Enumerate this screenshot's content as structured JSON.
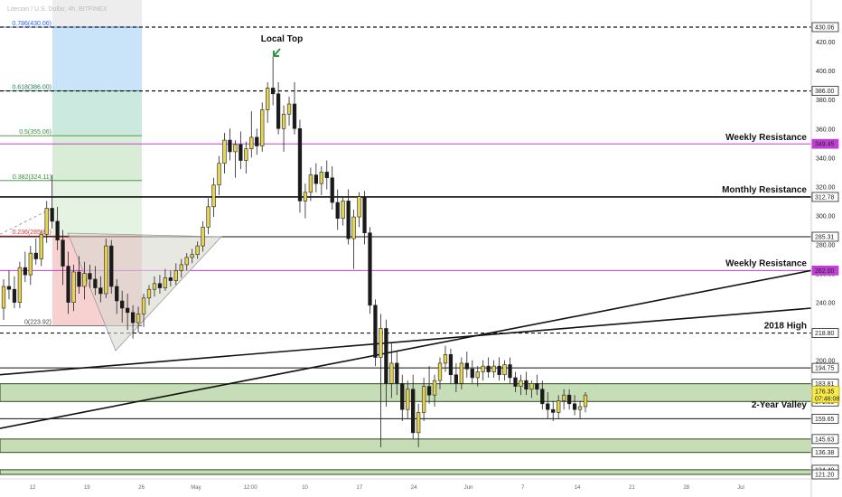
{
  "header": {
    "title": "Litecoin / U.S. Dollar, 4h, BITFINEX"
  },
  "colors": {
    "bull": "#e6d552",
    "bear": "#1a1a1a",
    "zone": "#8fbc6f",
    "resistance_purple": "#c23fd6",
    "fib_green": "#3c8c3c",
    "fib_red": "#d93636",
    "fib_blue": "#2962ff",
    "current_price": "#f7e94a"
  },
  "chart_data": {
    "type": "candlestick",
    "title": "",
    "xlabel": "",
    "ylabel": "",
    "ylim": [
      118,
      444
    ],
    "x_ticks": [
      "12",
      "19",
      "26",
      "May",
      "12:00",
      "10",
      "17",
      "24",
      "Jun",
      "7",
      "14",
      "21",
      "28",
      "Jul"
    ],
    "price_levels": [
      {
        "label": "430.06",
        "value": 430.06,
        "style": "dashed"
      },
      {
        "label": "386.00",
        "value": 386.0,
        "style": "dashed"
      },
      {
        "label": "349.45",
        "value": 349.45,
        "style": "purple"
      },
      {
        "label": "312.78",
        "value": 312.78,
        "style": "bold"
      },
      {
        "label": "285.31",
        "value": 285.31,
        "style": "solid"
      },
      {
        "label": "262.00",
        "value": 262.0,
        "style": "purple"
      },
      {
        "label": "218.80",
        "value": 218.8,
        "style": "dashed"
      },
      {
        "label": "194.75",
        "value": 194.75,
        "style": "solid"
      },
      {
        "label": "183.81",
        "value": 183.81,
        "style": "zone"
      },
      {
        "label": "171.55",
        "value": 171.55,
        "style": "zone"
      },
      {
        "label": "159.65",
        "value": 159.65,
        "style": "solid"
      },
      {
        "label": "145.63",
        "value": 145.63,
        "style": "zone"
      },
      {
        "label": "136.38",
        "value": 136.38,
        "style": "zone"
      },
      {
        "label": "124.40",
        "value": 124.4,
        "style": "zone"
      },
      {
        "label": "121.20",
        "value": 121.2,
        "style": "zone"
      }
    ],
    "axis_ticks": [
      420,
      400,
      380,
      360,
      340,
      320,
      300,
      280,
      260,
      240,
      220,
      200
    ],
    "current_price": {
      "price": "176.35",
      "countdown": "07:46:08",
      "value": 176.35
    },
    "annotations": [
      {
        "text": "Local Top"
      },
      {
        "text": "Weekly Resistance",
        "level": 349.45
      },
      {
        "text": "Monthly Resistance",
        "level": 312.78
      },
      {
        "text": "Weekly Resistance",
        "level": 262.0
      },
      {
        "text": "2018 High",
        "level": 218.8
      },
      {
        "text": "2-Year Valley",
        "level": 165.0
      }
    ],
    "fib_levels": [
      {
        "label": "0.786(430.06)",
        "value": 430.06,
        "color": "#2962ff"
      },
      {
        "label": "0.618(386.00)",
        "value": 386.0,
        "color": "#1e7d5a"
      },
      {
        "label": "0.5(355.06)",
        "value": 355.06,
        "color": "#3c8c3c"
      },
      {
        "label": "0.382(324.11)",
        "value": 324.11,
        "color": "#3c8c3c"
      },
      {
        "label": "0.236(285.81)",
        "value": 285.81,
        "color": "#d93636"
      },
      {
        "label": "0(223.92)",
        "value": 223.92,
        "color": "#444444"
      }
    ],
    "candles": [
      [
        236,
        256,
        228,
        251
      ],
      [
        251,
        262,
        242,
        249
      ],
      [
        249,
        258,
        236,
        240
      ],
      [
        240,
        268,
        236,
        264
      ],
      [
        264,
        275,
        254,
        259
      ],
      [
        259,
        279,
        252,
        274
      ],
      [
        274,
        284,
        266,
        270
      ],
      [
        270,
        290,
        265,
        287
      ],
      [
        287,
        310,
        281,
        305
      ],
      [
        305,
        328,
        291,
        296
      ],
      [
        296,
        306,
        276,
        283
      ],
      [
        283,
        290,
        252,
        265
      ],
      [
        265,
        275,
        232,
        240
      ],
      [
        240,
        266,
        234,
        261
      ],
      [
        261,
        272,
        246,
        251
      ],
      [
        251,
        268,
        242,
        260
      ],
      [
        260,
        266,
        250,
        256
      ],
      [
        256,
        265,
        245,
        250
      ],
      [
        250,
        258,
        240,
        246
      ],
      [
        246,
        284,
        243,
        279
      ],
      [
        279,
        283,
        246,
        251
      ],
      [
        251,
        256,
        232,
        241
      ],
      [
        241,
        248,
        226,
        236
      ],
      [
        236,
        246,
        221,
        233
      ],
      [
        233,
        238,
        215,
        226
      ],
      [
        226,
        237,
        219,
        232
      ],
      [
        232,
        246,
        223,
        243
      ],
      [
        243,
        252,
        238,
        249
      ],
      [
        249,
        258,
        244,
        253
      ],
      [
        253,
        259,
        246,
        250
      ],
      [
        250,
        263,
        248,
        257
      ],
      [
        257,
        262,
        251,
        255
      ],
      [
        255,
        267,
        252,
        262
      ],
      [
        262,
        270,
        257,
        266
      ],
      [
        266,
        274,
        262,
        271
      ],
      [
        271,
        277,
        267,
        273
      ],
      [
        273,
        282,
        270,
        279
      ],
      [
        279,
        296,
        275,
        292
      ],
      [
        292,
        312,
        287,
        306
      ],
      [
        306,
        326,
        299,
        321
      ],
      [
        321,
        341,
        314,
        336
      ],
      [
        336,
        357,
        329,
        352
      ],
      [
        352,
        360,
        338,
        344
      ],
      [
        344,
        352,
        326,
        349
      ],
      [
        349,
        358,
        332,
        338
      ],
      [
        338,
        351,
        329,
        346
      ],
      [
        346,
        372,
        340,
        354
      ],
      [
        354,
        360,
        342,
        348
      ],
      [
        348,
        378,
        344,
        373
      ],
      [
        373,
        392,
        364,
        388
      ],
      [
        388,
        410,
        376,
        384
      ],
      [
        384,
        392,
        356,
        360
      ],
      [
        360,
        376,
        344,
        370
      ],
      [
        370,
        382,
        362,
        377
      ],
      [
        377,
        392,
        356,
        360
      ],
      [
        360,
        366,
        302,
        310
      ],
      [
        310,
        322,
        298,
        316
      ],
      [
        316,
        333,
        310,
        328
      ],
      [
        328,
        336,
        316,
        322
      ],
      [
        322,
        334,
        314,
        330
      ],
      [
        330,
        338,
        318,
        326
      ],
      [
        326,
        334,
        304,
        309
      ],
      [
        309,
        318,
        290,
        298
      ],
      [
        298,
        313,
        293,
        310
      ],
      [
        310,
        318,
        280,
        284
      ],
      [
        284,
        304,
        263,
        299
      ],
      [
        299,
        316,
        292,
        313
      ],
      [
        313,
        317,
        280,
        288
      ],
      [
        288,
        292,
        232,
        238
      ],
      [
        238,
        242,
        196,
        202
      ],
      [
        202,
        232,
        140,
        222
      ],
      [
        222,
        228,
        168,
        184
      ],
      [
        184,
        212,
        174,
        198
      ],
      [
        198,
        206,
        176,
        184
      ],
      [
        184,
        190,
        158,
        166
      ],
      [
        166,
        186,
        160,
        180
      ],
      [
        180,
        190,
        146,
        150
      ],
      [
        150,
        170,
        140,
        164
      ],
      [
        164,
        188,
        158,
        182
      ],
      [
        182,
        196,
        170,
        176
      ],
      [
        176,
        190,
        168,
        186
      ],
      [
        186,
        202,
        180,
        198
      ],
      [
        198,
        210,
        192,
        204
      ],
      [
        204,
        208,
        184,
        190
      ],
      [
        190,
        198,
        178,
        184
      ],
      [
        184,
        202,
        180,
        198
      ],
      [
        198,
        206,
        188,
        194
      ],
      [
        194,
        200,
        184,
        188
      ],
      [
        188,
        196,
        182,
        192
      ],
      [
        192,
        200,
        186,
        196
      ],
      [
        196,
        202,
        188,
        192
      ],
      [
        192,
        200,
        188,
        196
      ],
      [
        196,
        202,
        186,
        190
      ],
      [
        190,
        200,
        186,
        197
      ],
      [
        197,
        202,
        184,
        188
      ],
      [
        188,
        192,
        178,
        182
      ],
      [
        182,
        190,
        176,
        186
      ],
      [
        186,
        192,
        176,
        180
      ],
      [
        180,
        186,
        174,
        184
      ],
      [
        184,
        190,
        176,
        180
      ],
      [
        180,
        186,
        166,
        170
      ],
      [
        170,
        178,
        160,
        166
      ],
      [
        166,
        172,
        158,
        164
      ],
      [
        164,
        176,
        160,
        172
      ],
      [
        172,
        180,
        166,
        176
      ],
      [
        176,
        180,
        166,
        170
      ],
      [
        170,
        176,
        162,
        166
      ],
      [
        166,
        172,
        160,
        168
      ],
      [
        168,
        178,
        164,
        176
      ]
    ]
  }
}
